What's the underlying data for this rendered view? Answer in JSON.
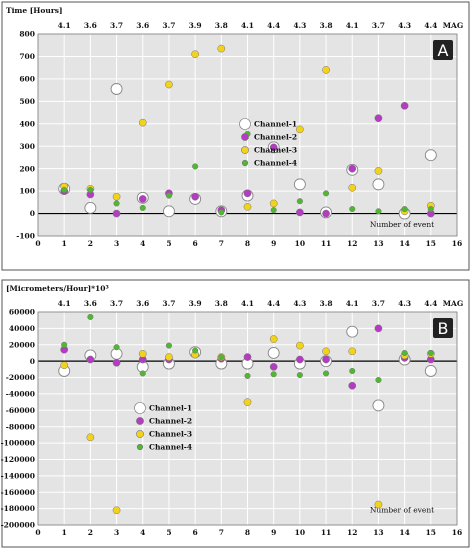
{
  "colors": {
    "channel1": "#ffffff",
    "channel2": "#b43cc2",
    "channel3": "#f2d21a",
    "channel4": "#4fb82f",
    "plot_background": "#e4e4e4",
    "badge": "#222222"
  },
  "chart_data": [
    {
      "type": "scatter",
      "panel_label": "A",
      "ylabel": "Time [Hours]",
      "mag_label": "MAG",
      "xlabel": "Number of event",
      "xlim": [
        0,
        16
      ],
      "ylim": [
        -100,
        800
      ],
      "x_ticks": [
        0,
        1,
        2,
        3,
        4,
        5,
        6,
        7,
        8,
        9,
        10,
        11,
        12,
        13,
        14,
        15,
        16
      ],
      "y_ticks": [
        -100,
        0,
        100,
        200,
        300,
        400,
        500,
        600,
        700,
        800
      ],
      "mag_values": [
        "4.1",
        "3.6",
        "3.7",
        "3.6",
        "3.7",
        "3.9",
        "3.8",
        "4.1",
        "4.4",
        "4.3",
        "3.8",
        "4.1",
        "3.7",
        "4.3",
        "4.4"
      ],
      "legend_position": "center-right",
      "grid": true,
      "x": [
        1,
        2,
        3,
        4,
        5,
        6,
        7,
        8,
        9,
        10,
        11,
        12,
        13,
        14,
        15
      ],
      "series": [
        {
          "name": "Channel-1",
          "color_key": "channel1",
          "values": [
            110,
            25,
            555,
            70,
            10,
            65,
            10,
            80,
            295,
            130,
            5,
            195,
            130,
            0,
            260
          ]
        },
        {
          "name": "Channel-2",
          "color_key": "channel2",
          "values": [
            100,
            85,
            0,
            65,
            90,
            75,
            15,
            90,
            295,
            5,
            0,
            200,
            425,
            480,
            0
          ]
        },
        {
          "name": "Channel-3",
          "color_key": "channel3",
          "values": [
            120,
            110,
            75,
            405,
            575,
            710,
            735,
            30,
            45,
            375,
            640,
            115,
            190,
            10,
            35
          ]
        },
        {
          "name": "Channel-4",
          "color_key": "channel4",
          "values": [
            105,
            105,
            45,
            25,
            80,
            210,
            5,
            355,
            15,
            55,
            90,
            20,
            10,
            20,
            20
          ]
        }
      ]
    },
    {
      "type": "scatter",
      "panel_label": "B",
      "ylabel": "[Micrometers/Hour]*10³",
      "mag_label": "MAG",
      "xlabel": "Number of event",
      "xlim": [
        0,
        16
      ],
      "ylim": [
        -200000,
        60000
      ],
      "x_ticks": [
        0,
        1,
        2,
        3,
        4,
        5,
        6,
        7,
        8,
        9,
        10,
        11,
        12,
        13,
        14,
        15,
        16
      ],
      "y_ticks": [
        -200000,
        -180000,
        -160000,
        -140000,
        -120000,
        -100000,
        -80000,
        -60000,
        -40000,
        -20000,
        0,
        20000,
        40000,
        60000
      ],
      "mag_values": [
        "4.1",
        "3.6",
        "3.7",
        "3.6",
        "3.7",
        "3.9",
        "3.8",
        "4.1",
        "4.4",
        "4.3",
        "3.8",
        "4.1",
        "3.7",
        "4.3",
        "4.4"
      ],
      "legend_position": "center-left",
      "grid": true,
      "x": [
        1,
        2,
        3,
        4,
        5,
        6,
        7,
        8,
        9,
        10,
        11,
        12,
        13,
        14,
        15
      ],
      "series": [
        {
          "name": "Channel-1",
          "color_key": "channel1",
          "values": [
            -12000,
            7000,
            9000,
            -7000,
            -3000,
            11000,
            -3000,
            -3000,
            10000,
            -3000,
            0,
            36000,
            -54000,
            2000,
            -12000
          ]
        },
        {
          "name": "Channel-2",
          "color_key": "channel2",
          "values": [
            14000,
            2000,
            -2000,
            2000,
            2000,
            8000,
            3000,
            5000,
            -7000,
            2000,
            2000,
            -30000,
            40000,
            4000,
            2000
          ]
        },
        {
          "name": "Channel-3",
          "color_key": "channel3",
          "values": [
            -5000,
            -93000,
            -182000,
            9000,
            5000,
            8000,
            5000,
            -50000,
            27000,
            19000,
            12000,
            12000,
            -175000,
            7000,
            9000
          ]
        },
        {
          "name": "Channel-4",
          "color_key": "channel4",
          "values": [
            20000,
            54000,
            17000,
            -15000,
            19000,
            13000,
            5000,
            -18000,
            -16000,
            -17000,
            -15000,
            -12000,
            -23000,
            10000,
            10000
          ]
        }
      ]
    }
  ]
}
